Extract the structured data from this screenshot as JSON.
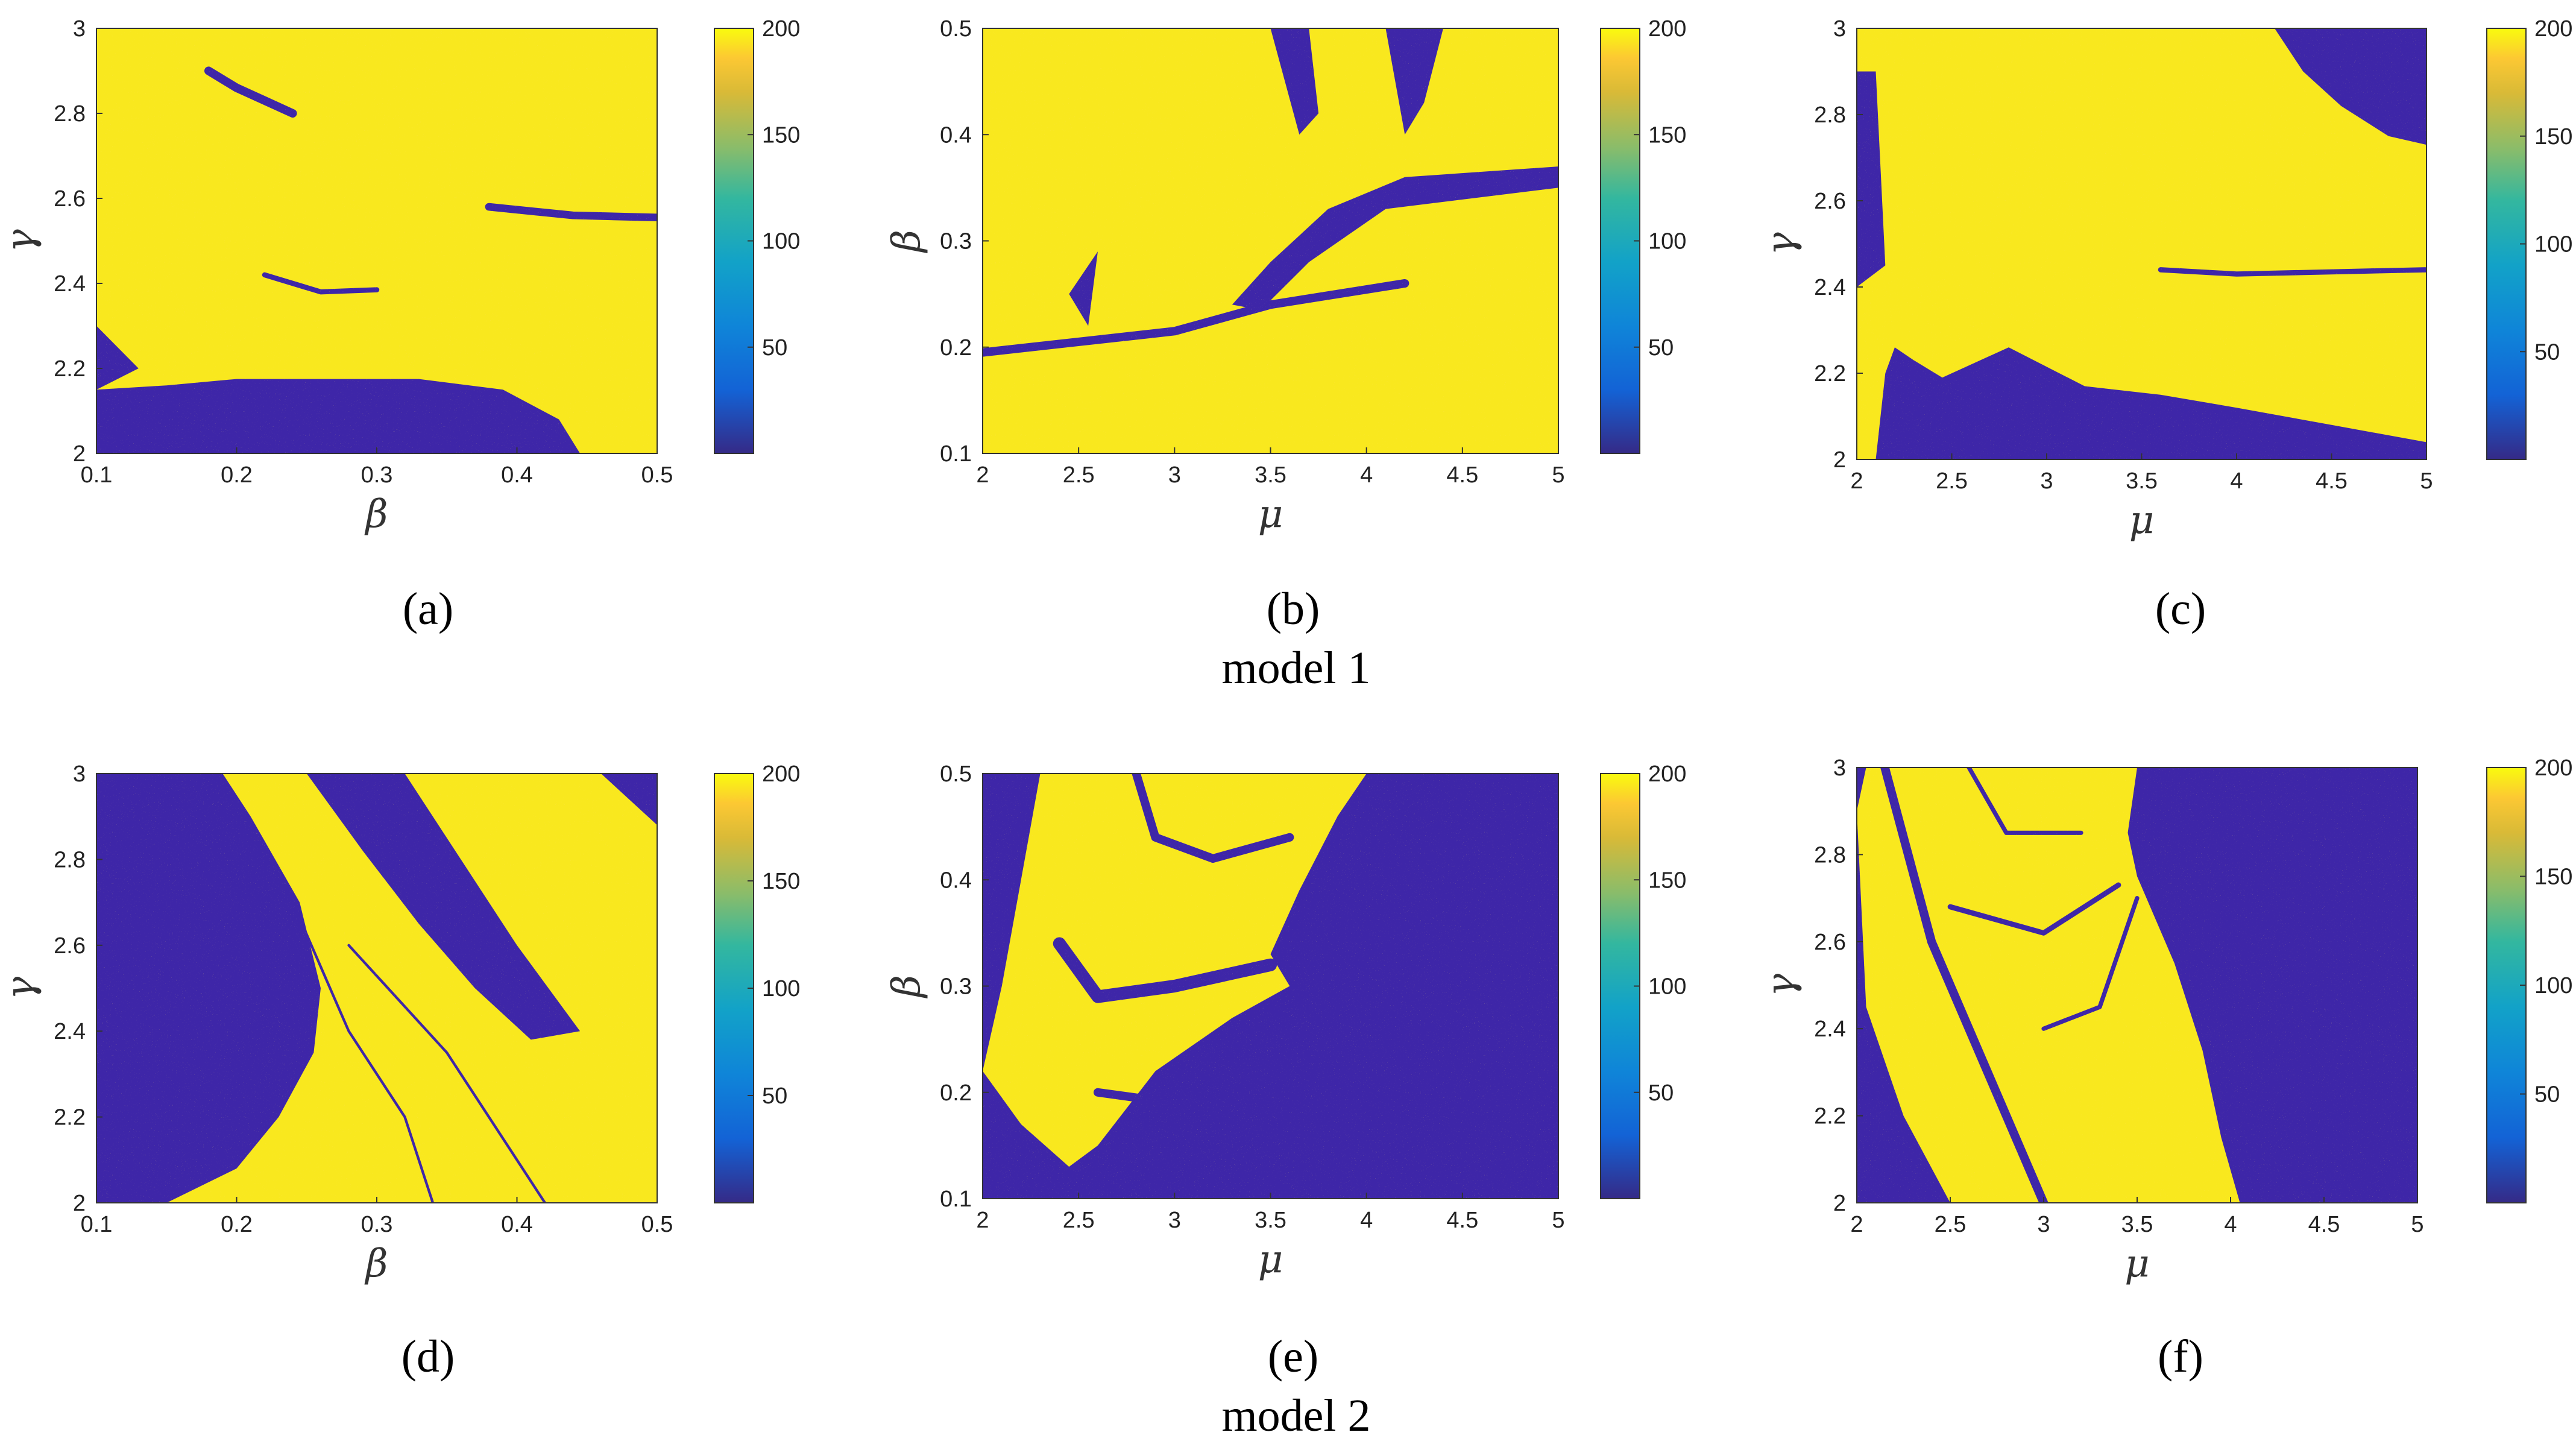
{
  "figure": {
    "models": [
      {
        "label": "model 1",
        "panels": [
          0,
          1,
          2
        ]
      },
      {
        "label": "model 2",
        "panels": [
          3,
          4,
          5
        ]
      }
    ],
    "colors": {
      "low": "#3e26a8",
      "high": "#f9e81e",
      "mid": "#1bb4a0"
    }
  },
  "chart_data": [
    {
      "type": "heatmap",
      "panel": "a",
      "xlabel": "β",
      "ylabel": "γ",
      "xlim": [
        0.1,
        0.5
      ],
      "ylim": [
        2,
        3
      ],
      "xticks": [
        0.1,
        0.2,
        0.3,
        0.4,
        0.5
      ],
      "xtick_labels": [
        "0.1",
        "0.2",
        "0.3",
        "0.4",
        "0.5"
      ],
      "yticks": [
        2,
        2.2,
        2.4,
        2.6,
        2.8,
        3
      ],
      "ytick_labels": [
        "2",
        "2.2",
        "2.4",
        "2.6",
        "2.8",
        "3"
      ],
      "colorbar": {
        "min": 0,
        "max": 200,
        "ticks": [
          50,
          100,
          150,
          200
        ],
        "tick_labels": [
          "50",
          "100",
          "150",
          "200"
        ]
      },
      "regions_low": [
        {
          "shape": "poly",
          "pts": [
            [
              0.1,
              2.0
            ],
            [
              0.445,
              2.0
            ],
            [
              0.43,
              2.08
            ],
            [
              0.39,
              2.15
            ],
            [
              0.33,
              2.175
            ],
            [
              0.2,
              2.175
            ],
            [
              0.15,
              2.16
            ],
            [
              0.1,
              2.15
            ]
          ]
        },
        {
          "shape": "poly",
          "pts": [
            [
              0.1,
              2.15
            ],
            [
              0.13,
              2.2
            ],
            [
              0.1,
              2.3
            ]
          ]
        },
        {
          "shape": "line",
          "pts": [
            [
              0.18,
              2.9
            ],
            [
              0.2,
              2.86
            ],
            [
              0.22,
              2.83
            ],
            [
              0.24,
              2.8
            ]
          ],
          "w": 0.02
        },
        {
          "shape": "line",
          "pts": [
            [
              0.22,
              2.42
            ],
            [
              0.26,
              2.38
            ],
            [
              0.3,
              2.385
            ]
          ],
          "w": 0.012
        },
        {
          "shape": "line",
          "pts": [
            [
              0.38,
              2.58
            ],
            [
              0.44,
              2.56
            ],
            [
              0.5,
              2.555
            ]
          ],
          "w": 0.018
        }
      ]
    },
    {
      "type": "heatmap",
      "panel": "b",
      "xlabel": "μ",
      "ylabel": "β",
      "xlim": [
        2,
        5
      ],
      "ylim": [
        0.1,
        0.5
      ],
      "xticks": [
        2,
        2.5,
        3,
        3.5,
        4,
        4.5,
        5
      ],
      "xtick_labels": [
        "2",
        "2.5",
        "3",
        "3.5",
        "4",
        "4.5",
        "5"
      ],
      "yticks": [
        0.1,
        0.2,
        0.3,
        0.4,
        0.5
      ],
      "ytick_labels": [
        "0.1",
        "0.2",
        "0.3",
        "0.4",
        "0.5"
      ],
      "colorbar": {
        "min": 0,
        "max": 200,
        "ticks": [
          50,
          100,
          150,
          200
        ],
        "tick_labels": [
          "50",
          "100",
          "150",
          "200"
        ]
      },
      "regions_low": [
        {
          "shape": "line",
          "pts": [
            [
              2,
              0.195
            ],
            [
              3,
              0.215
            ],
            [
              3.5,
              0.24
            ],
            [
              4.2,
              0.26
            ]
          ],
          "w": 0.008
        },
        {
          "shape": "poly",
          "pts": [
            [
              3.3,
              0.24
            ],
            [
              3.5,
              0.28
            ],
            [
              3.8,
              0.33
            ],
            [
              4.2,
              0.36
            ],
            [
              5,
              0.37
            ],
            [
              5,
              0.35
            ],
            [
              4.1,
              0.33
            ],
            [
              3.7,
              0.28
            ],
            [
              3.45,
              0.235
            ]
          ]
        },
        {
          "shape": "poly",
          "pts": [
            [
              4.1,
              0.5
            ],
            [
              4.4,
              0.5
            ],
            [
              4.3,
              0.43
            ],
            [
              4.2,
              0.4
            ]
          ]
        },
        {
          "shape": "poly",
          "pts": [
            [
              3.5,
              0.5
            ],
            [
              3.7,
              0.5
            ],
            [
              3.75,
              0.42
            ],
            [
              3.65,
              0.4
            ]
          ]
        },
        {
          "shape": "poly",
          "pts": [
            [
              2.45,
              0.25
            ],
            [
              2.55,
              0.22
            ],
            [
              2.6,
              0.29
            ]
          ]
        }
      ]
    },
    {
      "type": "heatmap",
      "panel": "c",
      "xlabel": "μ",
      "ylabel": "γ",
      "xlim": [
        2,
        5
      ],
      "ylim": [
        2,
        3
      ],
      "xticks": [
        2,
        2.5,
        3,
        3.5,
        4,
        4.5,
        5
      ],
      "xtick_labels": [
        "2",
        "2.5",
        "3",
        "3.5",
        "4",
        "4.5",
        "5"
      ],
      "yticks": [
        2,
        2.2,
        2.4,
        2.6,
        2.8,
        3
      ],
      "ytick_labels": [
        "2",
        "2.2",
        "2.4",
        "2.6",
        "2.8",
        "3"
      ],
      "colorbar": {
        "min": 0,
        "max": 200,
        "ticks": [
          50,
          100,
          150,
          200
        ],
        "tick_labels": [
          "50",
          "100",
          "150",
          "200"
        ]
      },
      "regions_low": [
        {
          "shape": "poly",
          "pts": [
            [
              2.1,
              2.0
            ],
            [
              5,
              2.0
            ],
            [
              5,
              2.04
            ],
            [
              4.5,
              2.08
            ],
            [
              4.0,
              2.12
            ],
            [
              3.6,
              2.15
            ],
            [
              3.2,
              2.17
            ],
            [
              2.8,
              2.26
            ],
            [
              2.45,
              2.19
            ],
            [
              2.3,
              2.23
            ],
            [
              2.2,
              2.26
            ],
            [
              2.15,
              2.2
            ]
          ]
        },
        {
          "shape": "poly",
          "pts": [
            [
              4.2,
              3.0
            ],
            [
              5,
              3.0
            ],
            [
              5,
              2.73
            ],
            [
              4.8,
              2.75
            ],
            [
              4.55,
              2.82
            ],
            [
              4.35,
              2.9
            ]
          ]
        },
        {
          "shape": "poly",
          "pts": [
            [
              2,
              2.4
            ],
            [
              2.15,
              2.45
            ],
            [
              2.1,
              2.9
            ],
            [
              2,
              2.9
            ]
          ]
        },
        {
          "shape": "line",
          "pts": [
            [
              3.6,
              2.44
            ],
            [
              4.0,
              2.43
            ],
            [
              5,
              2.44
            ]
          ],
          "w": 0.012
        }
      ]
    },
    {
      "type": "heatmap",
      "panel": "d",
      "xlabel": "β",
      "ylabel": "γ",
      "xlim": [
        0.1,
        0.5
      ],
      "ylim": [
        2,
        3
      ],
      "xticks": [
        0.1,
        0.2,
        0.3,
        0.4,
        0.5
      ],
      "xtick_labels": [
        "0.1",
        "0.2",
        "0.3",
        "0.4",
        "0.5"
      ],
      "yticks": [
        2,
        2.2,
        2.4,
        2.6,
        2.8,
        3
      ],
      "ytick_labels": [
        "2",
        "2.2",
        "2.4",
        "2.6",
        "2.8",
        "3"
      ],
      "colorbar": {
        "min": 0,
        "max": 200,
        "ticks": [
          50,
          100,
          150,
          200
        ],
        "tick_labels": [
          "50",
          "100",
          "150",
          "200"
        ]
      },
      "regions_low": [
        {
          "shape": "poly",
          "pts": [
            [
              0.1,
              2.0
            ],
            [
              0.15,
              2.0
            ],
            [
              0.2,
              2.08
            ],
            [
              0.23,
              2.2
            ],
            [
              0.255,
              2.35
            ],
            [
              0.26,
              2.5
            ],
            [
              0.245,
              2.7
            ],
            [
              0.21,
              2.9
            ],
            [
              0.19,
              3.0
            ],
            [
              0.1,
              3.0
            ]
          ]
        },
        {
          "shape": "poly",
          "pts": [
            [
              0.25,
              3.0
            ],
            [
              0.32,
              3.0
            ],
            [
              0.36,
              2.8
            ],
            [
              0.4,
              2.6
            ],
            [
              0.445,
              2.4
            ],
            [
              0.41,
              2.38
            ],
            [
              0.37,
              2.5
            ],
            [
              0.33,
              2.65
            ],
            [
              0.29,
              2.82
            ]
          ]
        },
        {
          "shape": "poly",
          "pts": [
            [
              0.46,
              3.0
            ],
            [
              0.5,
              3.0
            ],
            [
              0.5,
              2.88
            ]
          ]
        },
        {
          "shape": "line",
          "pts": [
            [
              0.24,
              2.7
            ],
            [
              0.28,
              2.4
            ],
            [
              0.32,
              2.2
            ],
            [
              0.34,
              2.0
            ]
          ],
          "w": 0.006
        },
        {
          "shape": "line",
          "pts": [
            [
              0.28,
              2.6
            ],
            [
              0.35,
              2.35
            ],
            [
              0.4,
              2.1
            ],
            [
              0.42,
              2.0
            ]
          ],
          "w": 0.006
        }
      ]
    },
    {
      "type": "heatmap",
      "panel": "e",
      "xlabel": "μ",
      "ylabel": "β",
      "xlim": [
        2,
        5
      ],
      "ylim": [
        0.1,
        0.5
      ],
      "xticks": [
        2,
        2.5,
        3,
        3.5,
        4,
        4.5,
        5
      ],
      "xtick_labels": [
        "2",
        "2.5",
        "3",
        "3.5",
        "4",
        "4.5",
        "5"
      ],
      "yticks": [
        0.1,
        0.2,
        0.3,
        0.4,
        0.5
      ],
      "ytick_labels": [
        "0.1",
        "0.2",
        "0.3",
        "0.4",
        "0.5"
      ],
      "colorbar": {
        "min": 0,
        "max": 200,
        "ticks": [
          50,
          100,
          150,
          200
        ],
        "tick_labels": [
          "50",
          "100",
          "150",
          "200"
        ]
      },
      "regions_high": [
        {
          "shape": "poly",
          "pts": [
            [
              2,
              0.22
            ],
            [
              2.1,
              0.3
            ],
            [
              2.2,
              0.4
            ],
            [
              2.3,
              0.5
            ],
            [
              4.0,
              0.5
            ],
            [
              3.85,
              0.46
            ],
            [
              3.65,
              0.39
            ],
            [
              3.5,
              0.33
            ],
            [
              3.6,
              0.3
            ],
            [
              3.3,
              0.27
            ],
            [
              2.9,
              0.22
            ],
            [
              2.6,
              0.15
            ],
            [
              2.45,
              0.13
            ],
            [
              2.2,
              0.17
            ]
          ]
        }
      ],
      "regions_low": [
        {
          "shape": "line",
          "pts": [
            [
              2.4,
              0.34
            ],
            [
              2.6,
              0.29
            ],
            [
              3.0,
              0.3
            ],
            [
              3.5,
              0.32
            ]
          ],
          "w": 0.012
        },
        {
          "shape": "line",
          "pts": [
            [
              2.8,
              0.5
            ],
            [
              2.9,
              0.44
            ],
            [
              3.2,
              0.42
            ],
            [
              3.6,
              0.44
            ]
          ],
          "w": 0.008
        },
        {
          "shape": "line",
          "pts": [
            [
              2.6,
              0.2
            ],
            [
              3.0,
              0.19
            ],
            [
              3.3,
              0.22
            ]
          ],
          "w": 0.008
        }
      ]
    },
    {
      "type": "heatmap",
      "panel": "f",
      "xlabel": "μ",
      "ylabel": "γ",
      "xlim": [
        2,
        5
      ],
      "ylim": [
        2,
        3
      ],
      "xticks": [
        2,
        2.5,
        3,
        3.5,
        4,
        4.5,
        5
      ],
      "xtick_labels": [
        "2",
        "2.5",
        "3",
        "3.5",
        "4",
        "4.5",
        "5"
      ],
      "yticks": [
        2,
        2.2,
        2.4,
        2.6,
        2.8,
        3
      ],
      "ytick_labels": [
        "2",
        "2.2",
        "2.4",
        "2.6",
        "2.8",
        "3"
      ],
      "colorbar": {
        "min": 0,
        "max": 200,
        "ticks": [
          50,
          100,
          150,
          200
        ],
        "tick_labels": [
          "50",
          "100",
          "150",
          "200"
        ]
      },
      "regions_high": [
        {
          "shape": "poly",
          "pts": [
            [
              2.0,
              2.9
            ],
            [
              2.05,
              3.0
            ],
            [
              3.5,
              3.0
            ],
            [
              3.45,
              2.85
            ],
            [
              3.5,
              2.75
            ],
            [
              3.7,
              2.55
            ],
            [
              3.85,
              2.35
            ],
            [
              3.95,
              2.15
            ],
            [
              4.05,
              2.0
            ],
            [
              2.5,
              2.0
            ],
            [
              2.25,
              2.2
            ],
            [
              2.05,
              2.45
            ]
          ]
        }
      ],
      "regions_low": [
        {
          "shape": "line",
          "pts": [
            [
              2.15,
              3.0
            ],
            [
              2.4,
              2.6
            ],
            [
              2.7,
              2.3
            ],
            [
              3.0,
              2.0
            ]
          ],
          "w": 0.02
        },
        {
          "shape": "line",
          "pts": [
            [
              2.5,
              2.68
            ],
            [
              3.0,
              2.62
            ],
            [
              3.4,
              2.73
            ]
          ],
          "w": 0.012
        },
        {
          "shape": "line",
          "pts": [
            [
              2.6,
              3.0
            ],
            [
              2.8,
              2.85
            ],
            [
              3.2,
              2.85
            ]
          ],
          "w": 0.01
        },
        {
          "shape": "line",
          "pts": [
            [
              3.0,
              2.4
            ],
            [
              3.3,
              2.45
            ],
            [
              3.5,
              2.7
            ]
          ],
          "w": 0.01
        }
      ]
    }
  ],
  "panel_labels": [
    "(a)",
    "(b)",
    "(c)",
    "(d)",
    "(e)",
    "(f)"
  ]
}
